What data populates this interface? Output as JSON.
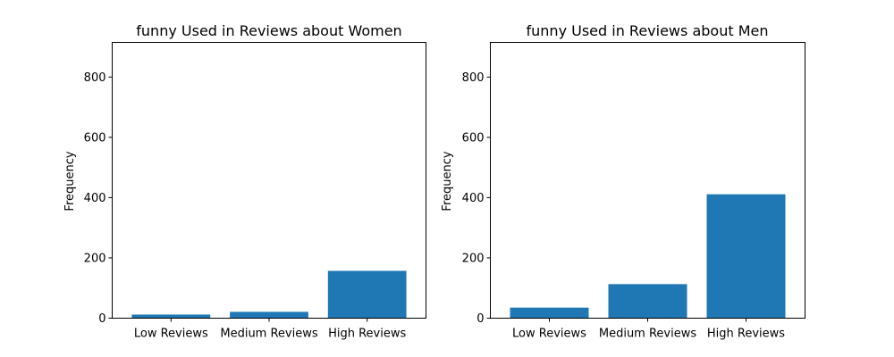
{
  "chart_data": [
    {
      "type": "bar",
      "title": "funny Used in Reviews about Women",
      "xlabel": "",
      "ylabel": "Frequency",
      "categories": [
        "Low Reviews",
        "Medium Reviews",
        "High Reviews"
      ],
      "values": [
        12,
        21,
        157
      ],
      "ylim": [
        0,
        915
      ],
      "yticks": [
        0,
        200,
        400,
        600,
        800
      ],
      "color": "#1f77b4",
      "grid": false
    },
    {
      "type": "bar",
      "title": "funny Used in Reviews about Men",
      "xlabel": "",
      "ylabel": "Frequency",
      "categories": [
        "Low Reviews",
        "Medium Reviews",
        "High Reviews"
      ],
      "values": [
        35,
        113,
        411
      ],
      "ylim": [
        0,
        915
      ],
      "yticks": [
        0,
        200,
        400,
        600,
        800
      ],
      "color": "#1f77b4",
      "grid": false
    }
  ]
}
